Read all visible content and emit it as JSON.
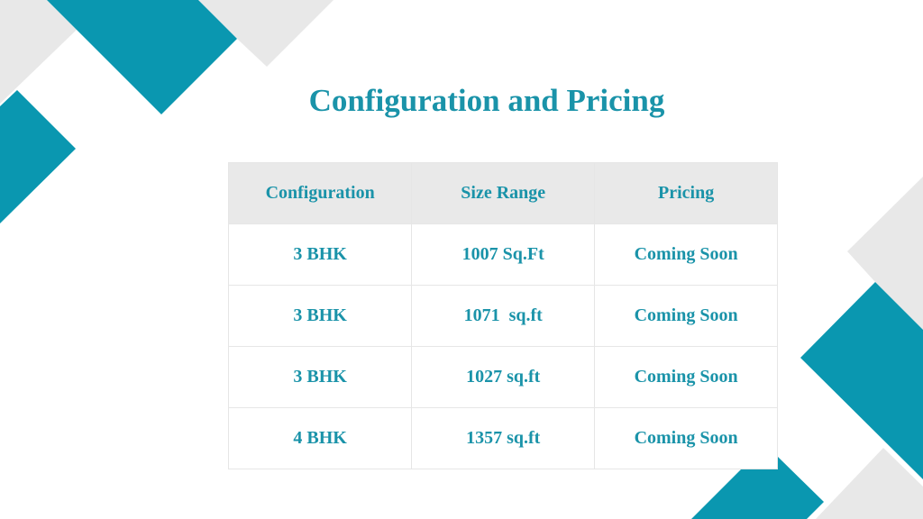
{
  "title": "Configuration and Pricing",
  "colors": {
    "accent": "#0a97b0",
    "gray": "#e8e8e8",
    "text": "#1a93a9"
  },
  "table": {
    "headers": [
      "Configuration",
      "Size Range",
      "Pricing"
    ],
    "rows": [
      [
        "3 BHK",
        "1007 Sq.Ft",
        "Coming Soon"
      ],
      [
        "3 BHK",
        "1071  sq.ft",
        "Coming Soon"
      ],
      [
        "3 BHK",
        "1027 sq.ft",
        "Coming Soon"
      ],
      [
        "4 BHK",
        "1357 sq.ft",
        "Coming Soon"
      ]
    ]
  }
}
